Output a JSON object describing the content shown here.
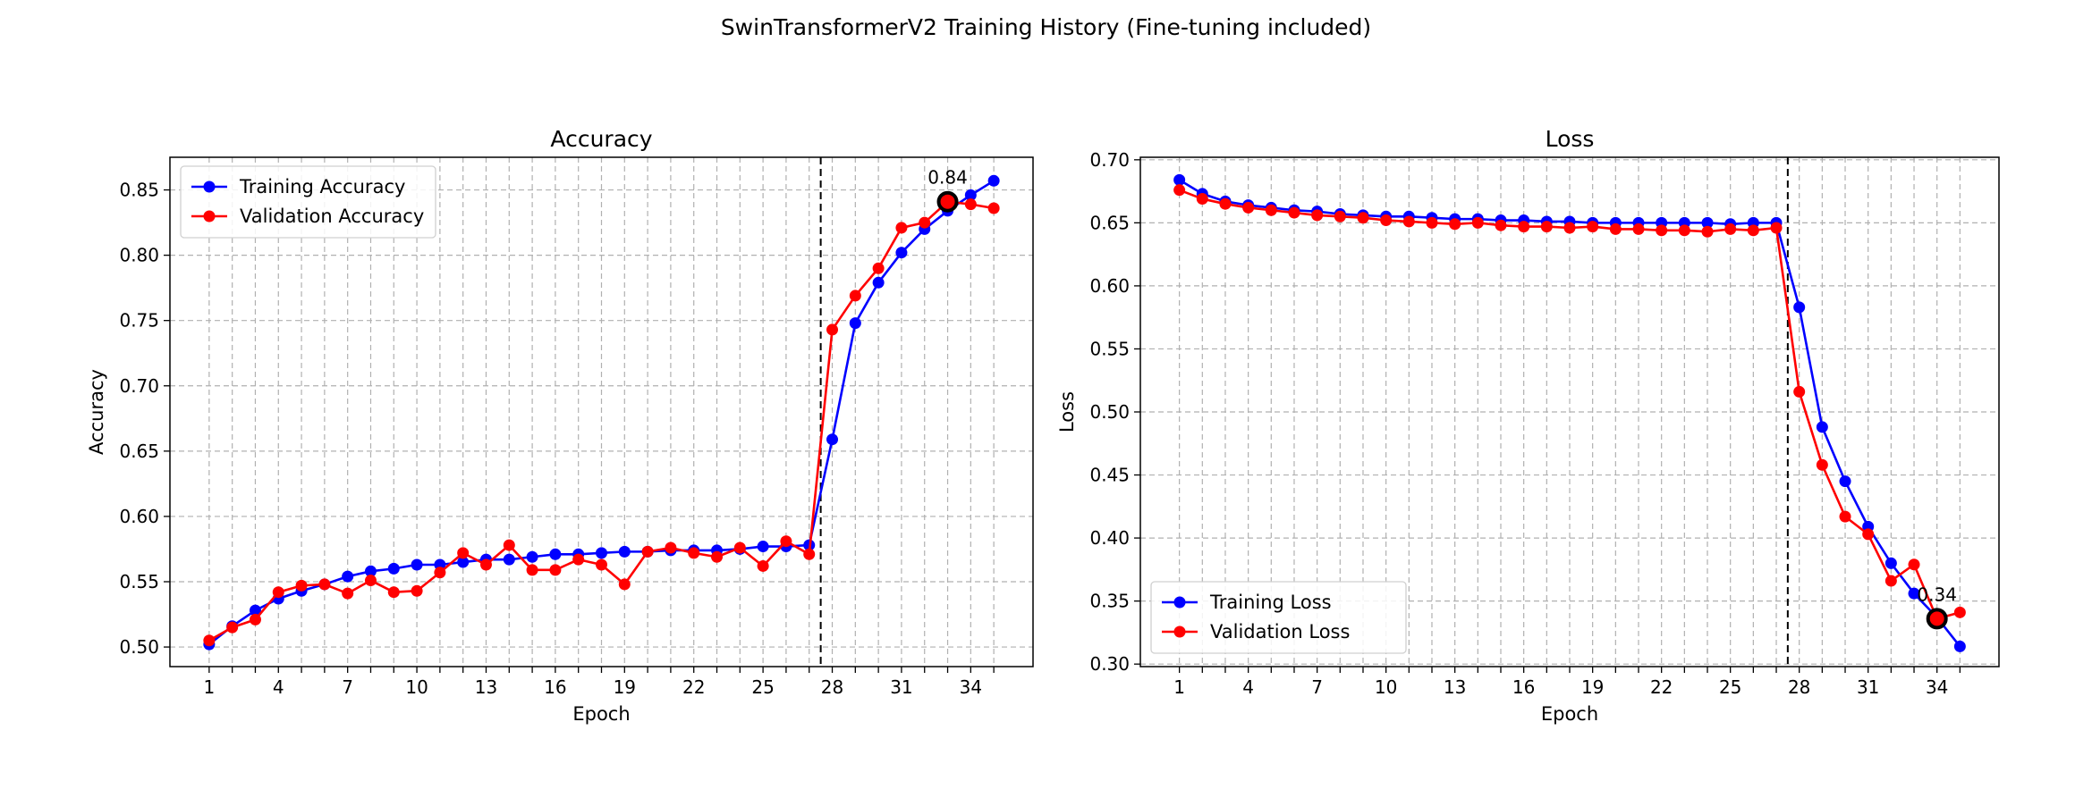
{
  "figure": {
    "title": "SwinTransformerV2 Training History (Fine-tuning included)"
  },
  "colors": {
    "training": "#0000ff",
    "validation": "#ff0000",
    "grid": "#b0b0b0",
    "marker_best": "#000000"
  },
  "chart_data": [
    {
      "type": "line",
      "title": "Accuracy",
      "xlabel": "Epoch",
      "ylabel": "Accuracy",
      "xlim": [
        -0.7,
        36.7
      ],
      "ylim": [
        0.485,
        0.875
      ],
      "xticks": [
        1,
        4,
        7,
        10,
        13,
        16,
        19,
        22,
        25,
        28,
        31,
        34
      ],
      "yticks": [
        0.5,
        0.55,
        0.6,
        0.65,
        0.7,
        0.75,
        0.8,
        0.85
      ],
      "ytick_labels": [
        "0.50",
        "0.55",
        "0.60",
        "0.65",
        "0.70",
        "0.75",
        "0.80",
        "0.85"
      ],
      "grid": true,
      "legend_position": "upper-left",
      "fine_tune_start_epoch": 27.5,
      "x": [
        1,
        2,
        3,
        4,
        5,
        6,
        7,
        8,
        9,
        10,
        11,
        12,
        13,
        14,
        15,
        16,
        17,
        18,
        19,
        20,
        21,
        22,
        23,
        24,
        25,
        26,
        27,
        28,
        29,
        30,
        31,
        32,
        33,
        34,
        35
      ],
      "series": [
        {
          "name": "Training Accuracy",
          "color": "#0000ff",
          "values": [
            0.502,
            0.516,
            0.528,
            0.537,
            0.543,
            0.548,
            0.554,
            0.558,
            0.56,
            0.563,
            0.563,
            0.565,
            0.567,
            0.567,
            0.569,
            0.571,
            0.571,
            0.572,
            0.573,
            0.573,
            0.574,
            0.574,
            0.574,
            0.575,
            0.577,
            0.577,
            0.578,
            0.659,
            0.748,
            0.779,
            0.802,
            0.82,
            0.834,
            0.846,
            0.857
          ]
        },
        {
          "name": "Validation Accuracy",
          "color": "#ff0000",
          "values": [
            0.505,
            0.515,
            0.521,
            0.542,
            0.547,
            0.548,
            0.541,
            0.551,
            0.542,
            0.543,
            0.557,
            0.572,
            0.563,
            0.578,
            0.559,
            0.559,
            0.567,
            0.563,
            0.548,
            0.573,
            0.576,
            0.572,
            0.569,
            0.576,
            0.562,
            0.581,
            0.571,
            0.743,
            0.769,
            0.79,
            0.821,
            0.825,
            0.841,
            0.839,
            0.836
          ]
        }
      ],
      "best_point": {
        "x": 33,
        "y": 0.841,
        "label": "0.84"
      }
    },
    {
      "type": "line",
      "title": "Loss",
      "xlabel": "Epoch",
      "ylabel": "Loss",
      "xlim": [
        -0.7,
        36.7
      ],
      "ylim": [
        0.298,
        0.702
      ],
      "xticks": [
        1,
        4,
        7,
        10,
        13,
        16,
        19,
        22,
        25,
        28,
        31,
        34
      ],
      "yticks": [
        0.3,
        0.35,
        0.4,
        0.45,
        0.5,
        0.55,
        0.6,
        0.65,
        0.7
      ],
      "ytick_labels": [
        "0.30",
        "0.35",
        "0.40",
        "0.45",
        "0.50",
        "0.55",
        "0.60",
        "0.65",
        "0.70"
      ],
      "grid": true,
      "legend_position": "lower-left",
      "fine_tune_start_epoch": 27.5,
      "x": [
        1,
        2,
        3,
        4,
        5,
        6,
        7,
        8,
        9,
        10,
        11,
        12,
        13,
        14,
        15,
        16,
        17,
        18,
        19,
        20,
        21,
        22,
        23,
        24,
        25,
        26,
        27,
        28,
        29,
        30,
        31,
        32,
        33,
        34,
        35
      ],
      "series": [
        {
          "name": "Training Loss",
          "color": "#0000ff",
          "values": [
            0.684,
            0.673,
            0.667,
            0.664,
            0.662,
            0.66,
            0.659,
            0.657,
            0.656,
            0.655,
            0.655,
            0.654,
            0.653,
            0.653,
            0.652,
            0.652,
            0.651,
            0.651,
            0.65,
            0.65,
            0.65,
            0.65,
            0.65,
            0.65,
            0.649,
            0.65,
            0.65,
            0.583,
            0.488,
            0.445,
            0.409,
            0.38,
            0.356,
            0.337,
            0.314
          ]
        },
        {
          "name": "Validation Loss",
          "color": "#ff0000",
          "values": [
            0.676,
            0.669,
            0.665,
            0.662,
            0.66,
            0.658,
            0.656,
            0.655,
            0.654,
            0.652,
            0.651,
            0.65,
            0.649,
            0.65,
            0.648,
            0.647,
            0.647,
            0.646,
            0.647,
            0.645,
            0.645,
            0.644,
            0.644,
            0.643,
            0.645,
            0.644,
            0.646,
            0.516,
            0.458,
            0.417,
            0.403,
            0.366,
            0.379,
            0.336,
            0.341
          ]
        }
      ],
      "best_point": {
        "x": 34,
        "y": 0.336,
        "label": "0.34"
      }
    }
  ]
}
